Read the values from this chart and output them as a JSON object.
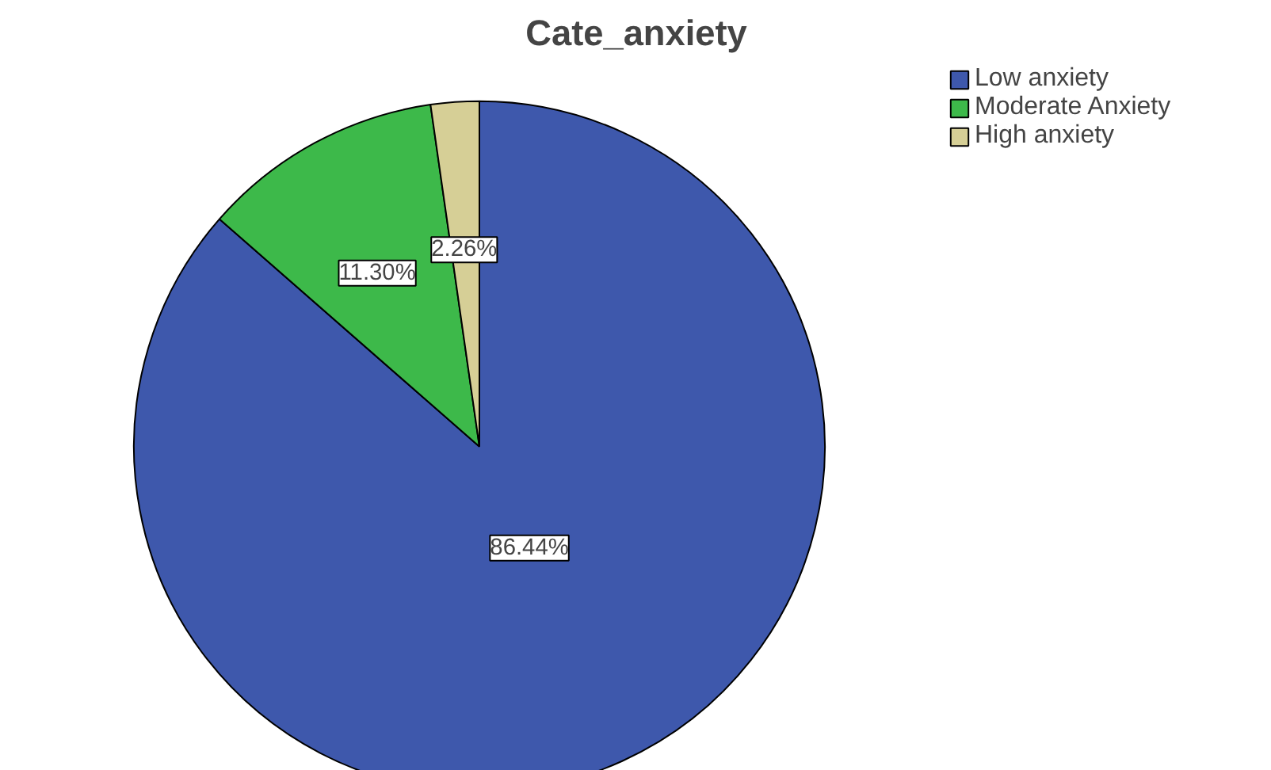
{
  "chart_data": {
    "type": "pie",
    "title": "Cate_anxiety",
    "categories": [
      "Low anxiety",
      "Moderate Anxiety",
      "High anxiety"
    ],
    "values": [
      86.44,
      11.3,
      2.26
    ],
    "colors": [
      "#3e58ac",
      "#3db94a",
      "#d6cf96"
    ],
    "value_labels": [
      "86.44%",
      "11.30%",
      "2.26%"
    ],
    "legend": "top right"
  }
}
